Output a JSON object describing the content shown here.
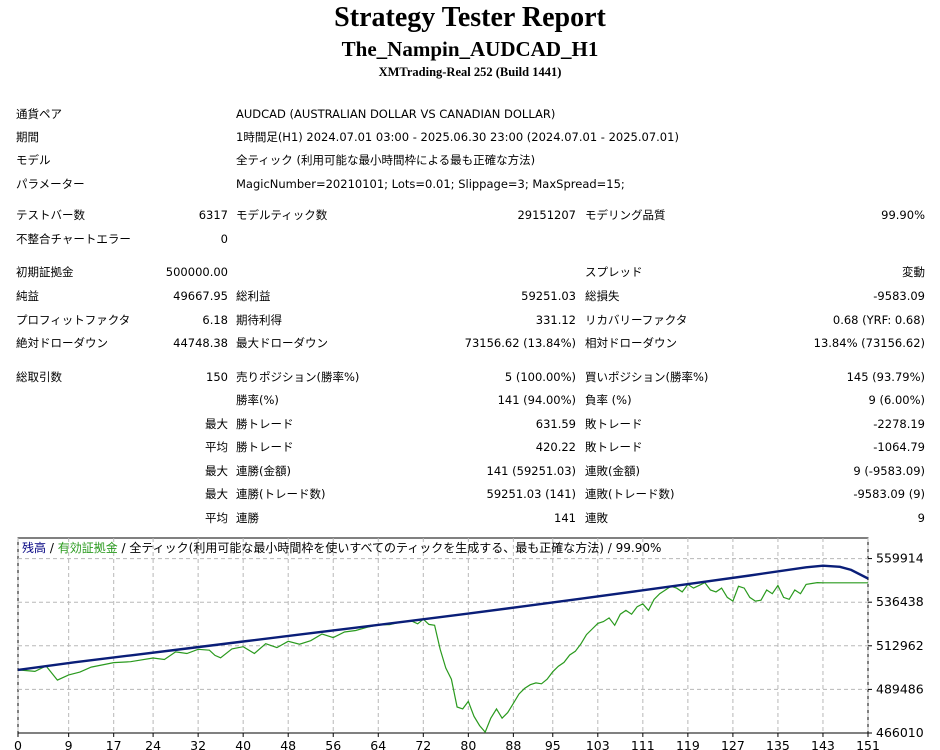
{
  "header": {
    "title": "Strategy Tester Report",
    "subtitle": "The_Nampin_AUDCAD_H1",
    "server": "XMTrading-Real 252 (Build 1441)"
  },
  "info": {
    "symbol_label": "通貨ペア",
    "symbol_value": "AUDCAD (AUSTRALIAN DOLLAR VS CANADIAN DOLLAR)",
    "period_label": "期間",
    "period_value": "1時間足(H1) 2024.07.01 03:00 - 2025.06.30 23:00 (2024.07.01 - 2025.07.01)",
    "model_label": "モデル",
    "model_value": "全ティック (利用可能な最小時間枠による最も正確な方法)",
    "params_label": "パラメーター",
    "params_value": "MagicNumber=20210101; Lots=0.01; Slippage=3; MaxSpread=15;"
  },
  "stats": {
    "bars_label": "テストバー数",
    "bars_value": "6317",
    "ticks_label": "モデルティック数",
    "ticks_value": "29151207",
    "quality_label": "モデリング品質",
    "quality_value": "99.90%",
    "errors_label": "不整合チャートエラー",
    "errors_value": "0",
    "deposit_label": "初期証拠金",
    "deposit_value": "500000.00",
    "spread_label": "スプレッド",
    "spread_value": "変動",
    "net_label": "純益",
    "net_value": "49667.95",
    "gross_profit_label": "総利益",
    "gross_profit_value": "59251.03",
    "gross_loss_label": "総損失",
    "gross_loss_value": "-9583.09",
    "pf_label": "プロフィットファクタ",
    "pf_value": "6.18",
    "expected_label": "期待利得",
    "expected_value": "331.12",
    "recovery_label": "リカバリーファクタ",
    "recovery_value": "0.68 (YRF: 0.68)",
    "abs_dd_label": "絶対ドローダウン",
    "abs_dd_value": "44748.38",
    "max_dd_label": "最大ドローダウン",
    "max_dd_value": "73156.62 (13.84%)",
    "rel_dd_label": "相対ドローダウン",
    "rel_dd_value": "13.84% (73156.62)",
    "trades_label": "総取引数",
    "trades_value": "150",
    "short_label": "売りポジション(勝率%)",
    "short_value": "5 (100.00%)",
    "long_label": "買いポジション(勝率%)",
    "long_value": "145 (93.79%)",
    "win_rate_label": "勝率(%)",
    "win_rate_value": "141 (94.00%)",
    "loss_rate_label": "負率 (%)",
    "loss_rate_value": "9 (6.00%)",
    "largest_label": "最大",
    "largest_win_label": "勝トレード",
    "largest_win_value": "631.59",
    "largest_loss_label": "敗トレード",
    "largest_loss_value": "-2278.19",
    "average_label": "平均",
    "avg_win_label": "勝トレード",
    "avg_win_value": "420.22",
    "avg_loss_label": "敗トレード",
    "avg_loss_value": "-1064.79",
    "max_consec_label": "最大",
    "consec_wins_money_label": "連勝(金額)",
    "consec_wins_money_value": "141 (59251.03)",
    "consec_losses_money_label": "連敗(金額)",
    "consec_losses_money_value": "9 (-9583.09)",
    "max_consec2_label": "最大",
    "consec_wins_count_label": "連勝(トレード数)",
    "consec_wins_count_value": "59251.03 (141)",
    "consec_losses_count_label": "連敗(トレード数)",
    "consec_losses_count_value": "-9583.09 (9)",
    "avg_consec_label": "平均",
    "avg_consec_wins_label": "連勝",
    "avg_consec_wins_value": "141",
    "avg_consec_losses_label": "連敗",
    "avg_consec_losses_value": "9"
  },
  "colors": {
    "balance": "#0a1e78",
    "equity": "#2a9a1e",
    "grid": "#b8b8b8",
    "legend_text": "#000080"
  },
  "chart_data": {
    "type": "line",
    "legend": {
      "balance": "残高",
      "equity": "有効証拠金",
      "sep": " / ",
      "desc": "全ティック(利用可能な最小時間枠を使いすべてのティックを生成する、最も正確な方法) / 99.90%"
    },
    "x_ticks": [
      0,
      9,
      17,
      24,
      32,
      40,
      48,
      56,
      64,
      72,
      80,
      88,
      95,
      103,
      111,
      119,
      127,
      135,
      143,
      151
    ],
    "y_ticks": [
      466010,
      489486,
      512962,
      536438,
      559914
    ],
    "xlim": [
      0,
      151
    ],
    "ylim": [
      466010,
      571000
    ],
    "series": [
      {
        "name": "残高",
        "x": [
          0,
          10,
          20,
          30,
          40,
          50,
          60,
          70,
          80,
          90,
          100,
          110,
          120,
          130,
          140,
          143,
          146,
          148,
          151
        ],
        "y": [
          500000,
          504100,
          507800,
          511500,
          515300,
          519000,
          522700,
          526500,
          530300,
          534300,
          538300,
          542400,
          546600,
          550800,
          555200,
          556100,
          555500,
          553800,
          549200
        ]
      },
      {
        "name": "有効証拠金",
        "x": [
          0,
          3,
          5,
          7,
          9,
          11,
          13,
          17,
          20,
          24,
          26,
          28,
          30,
          32,
          34,
          35,
          36,
          38,
          40,
          42,
          44,
          46,
          48,
          50,
          52,
          54,
          56,
          58,
          60,
          62,
          64,
          66,
          68,
          70,
          71,
          72,
          73,
          74,
          75,
          76,
          77,
          78,
          79,
          80,
          81,
          82,
          83,
          84,
          85,
          86,
          87,
          88,
          89,
          90,
          91,
          92,
          93,
          94,
          95,
          96,
          97,
          98,
          99,
          100,
          101,
          102,
          103,
          104,
          105,
          106,
          107,
          108,
          109,
          110,
          111,
          112,
          113,
          114,
          115,
          116,
          117,
          118,
          119,
          120,
          121,
          122,
          123,
          124,
          125,
          126,
          127,
          128,
          129,
          130,
          131,
          132,
          133,
          134,
          135,
          136,
          137,
          138,
          139,
          140,
          141,
          142,
          143,
          151
        ],
        "y": [
          500000,
          499200,
          502100,
          494500,
          497300,
          498800,
          501500,
          503900,
          504400,
          506400,
          505600,
          509700,
          508800,
          511100,
          510600,
          507800,
          506500,
          511300,
          512500,
          508800,
          514100,
          512000,
          515400,
          513800,
          515700,
          519300,
          517400,
          520400,
          521200,
          522900,
          524200,
          524400,
          525800,
          526200,
          524800,
          527300,
          524500,
          524000,
          511000,
          501000,
          495000,
          480000,
          479000,
          483000,
          475000,
          470000,
          466500,
          474000,
          479000,
          474000,
          477000,
          482000,
          487000,
          490000,
          492000,
          493000,
          492500,
          495000,
          499000,
          502000,
          504000,
          508000,
          510000,
          514000,
          519000,
          522000,
          525000,
          526000,
          528000,
          524000,
          530000,
          532000,
          530000,
          534000,
          535500,
          532000,
          538000,
          541000,
          543000,
          545000,
          544000,
          542000,
          546000,
          544000,
          545500,
          547000,
          543000,
          542000,
          544000,
          539000,
          537000,
          545000,
          544000,
          539000,
          537000,
          537500,
          543000,
          541000,
          545500,
          539000,
          538000,
          543000,
          541000,
          546000,
          546500,
          547000,
          546900,
          546900
        ]
      }
    ]
  }
}
